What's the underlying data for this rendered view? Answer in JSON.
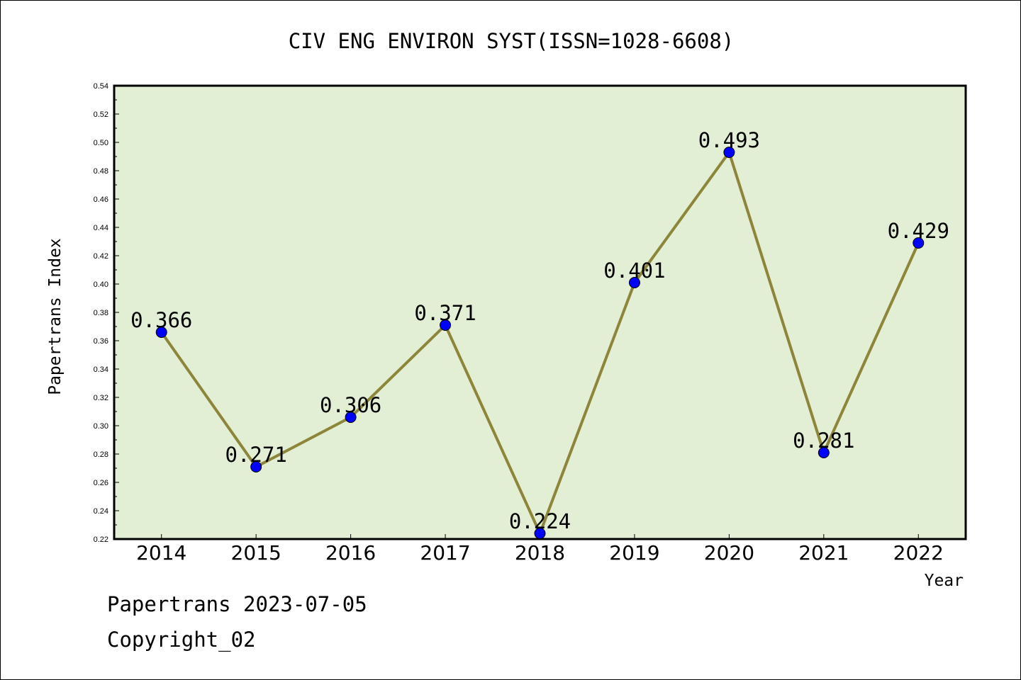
{
  "colors": {
    "plot_background": "#e2efd4",
    "line": "#8c853a",
    "marker": "#0000ff",
    "axis": "#000000"
  },
  "footer": {
    "source": "Papertrans 2023-07-05",
    "copyright": "Copyright_02"
  },
  "chart_data": {
    "type": "line",
    "title": "CIV ENG ENVIRON SYST(ISSN=1028-6608)",
    "xlabel": "Year",
    "ylabel": "Papertrans Index",
    "categories": [
      "2014",
      "2015",
      "2016",
      "2017",
      "2018",
      "2019",
      "2020",
      "2021",
      "2022"
    ],
    "series": [
      {
        "values": [
          0.366,
          0.271,
          0.306,
          0.371,
          0.224,
          0.401,
          0.493,
          0.281,
          0.429
        ],
        "data_labels": [
          "0.366",
          "0.271",
          "0.306",
          "0.371",
          "0.224",
          "0.401",
          "0.493",
          "0.281",
          "0.429"
        ]
      }
    ],
    "ylim": [
      0.22,
      0.54
    ],
    "yticks": [
      "0.22",
      "0.24",
      "0.26",
      "0.28",
      "0.30",
      "0.32",
      "0.34",
      "0.36",
      "0.38",
      "0.40",
      "0.42",
      "0.44",
      "0.46",
      "0.48",
      "0.50",
      "0.52",
      "0.54"
    ],
    "grid": false,
    "legend": "none"
  }
}
